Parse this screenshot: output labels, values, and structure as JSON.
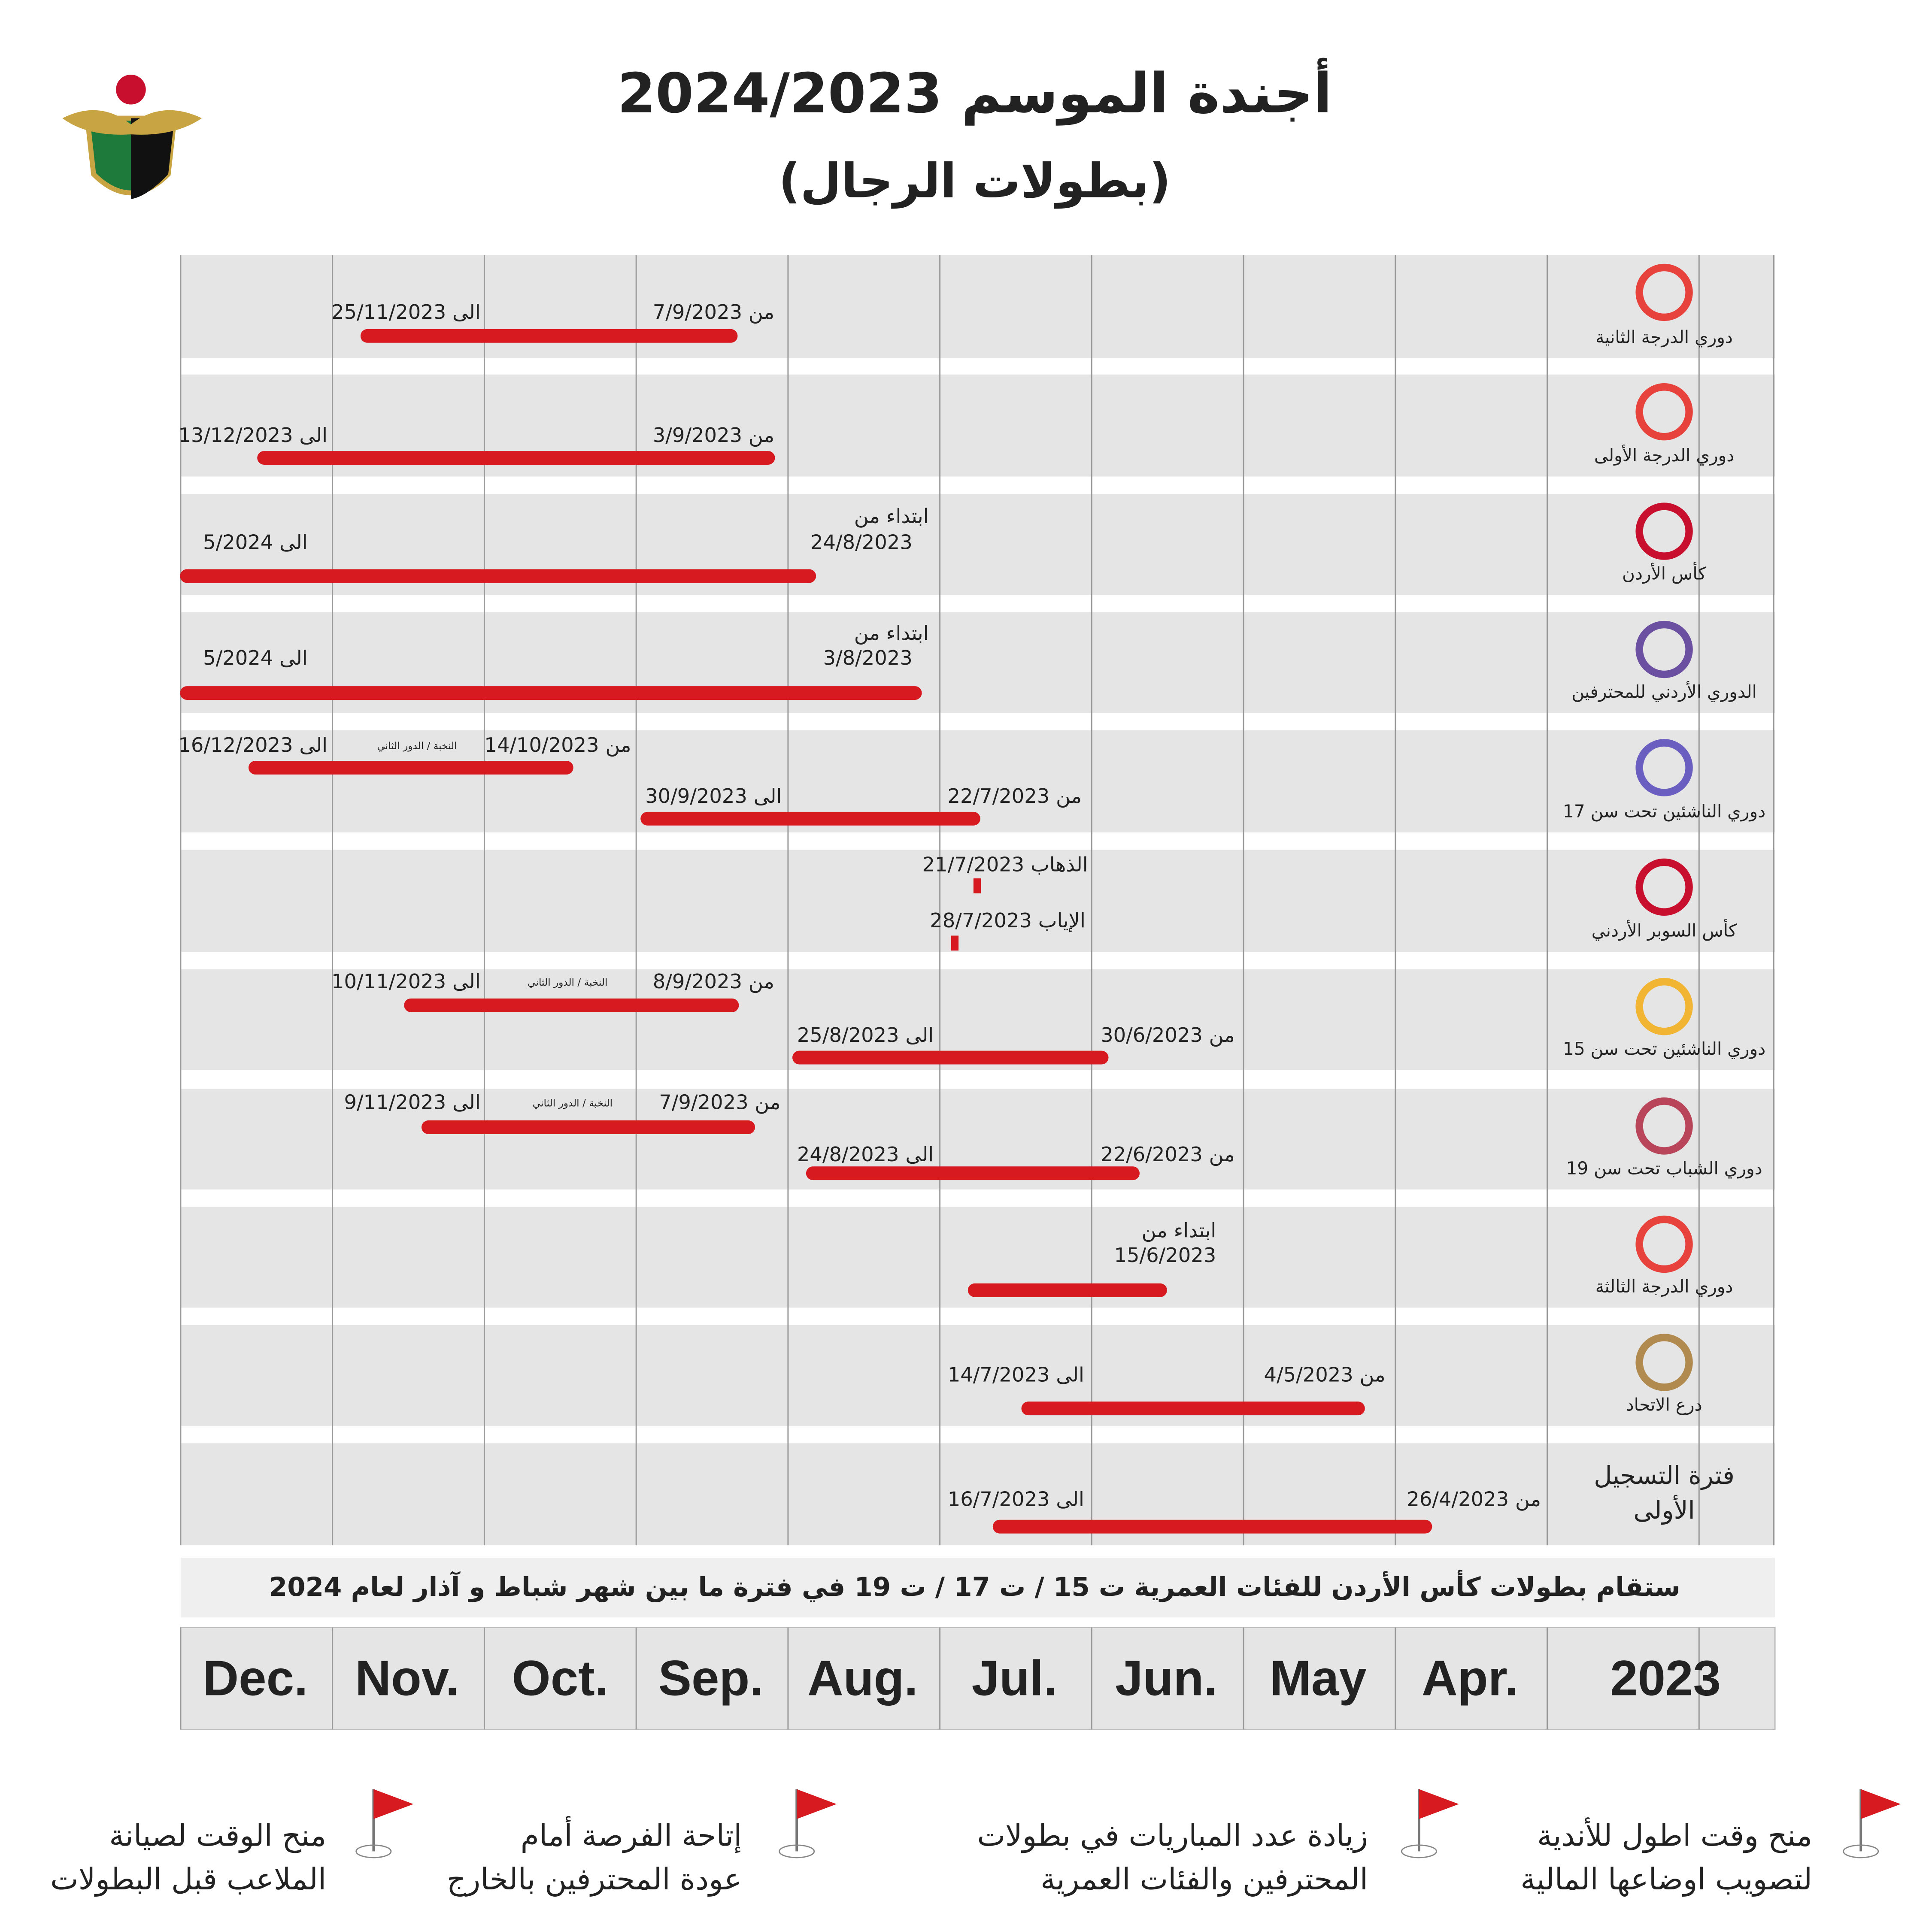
{
  "header": {
    "title": "أجندة الموسم 2024/2023",
    "subtitle": "(بطولات الرجال)"
  },
  "rows": [
    {
      "name": [
        "دوري الدرجة الثانية"
      ],
      "texts": [
        "من 7/9/2023",
        "الى 25/11/2023"
      ]
    },
    {
      "name": [
        "دوري الدرجة الأولى"
      ],
      "texts": [
        "من 3/9/2023",
        "الى 13/12/2023"
      ]
    },
    {
      "name": [
        "كأس الأردن"
      ],
      "texts": [
        "ابتداء من",
        "24/8/2023",
        "الى 5/2024"
      ]
    },
    {
      "name": [
        "الدوري الأردني للمحترفين"
      ],
      "texts": [
        "ابتداء من",
        "3/8/2023",
        "الى 5/2024"
      ]
    },
    {
      "name": [
        "دوري الناشئين تحت سن 17"
      ],
      "texts": [
        "من 14/10/2023",
        "النخبة / الدور الثاني",
        "الى 16/12/2023",
        "من 22/7/2023",
        "الى 30/9/2023"
      ]
    },
    {
      "name": [
        "كأس السوبر الأردني"
      ],
      "texts": [
        "الذهاب 21/7/2023",
        "الإياب 28/7/2023"
      ]
    },
    {
      "name": [
        "دوري الناشئين تحت سن 15"
      ],
      "texts": [
        "من 8/9/2023",
        "النخبة / الدور الثاني",
        "الى 10/11/2023",
        "من 30/6/2023",
        "الى 25/8/2023"
      ]
    },
    {
      "name": [
        "دوري الشباب تحت سن 19"
      ],
      "texts": [
        "من 7/9/2023",
        "النخبة / الدور الثاني",
        "الى 9/11/2023",
        "من 22/6/2023",
        "الى 24/8/2023"
      ]
    },
    {
      "name": [
        "دوري الدرجة الثالثة"
      ],
      "texts": [
        "ابتداء من",
        "15/6/2023"
      ]
    },
    {
      "name": [
        "درع الاتحاد"
      ],
      "texts": [
        "من 4/5/2023",
        "الى 14/7/2023"
      ]
    },
    {
      "name": [
        "فترة التسجيل",
        "الأولى"
      ],
      "texts": [
        "من 26/4/2023",
        "الى 16/7/2023"
      ]
    }
  ],
  "note": "ستقام بطولات كأس الأردن للفئات العمرية ت 15 / ت 17 / ت 19 في فترة ما بين شهر شباط و آذار لعام 2024",
  "months": [
    "Dec.",
    "Nov.",
    "Oct.",
    "Sep.",
    "Aug.",
    "Jul.",
    "Jun.",
    "May",
    "Apr.",
    "2023"
  ],
  "footer": [
    [
      "منح وقت اطول للأندية",
      "لتصويب اوضاعها المالية"
    ],
    [
      "زيادة عدد المباريات في بطولات",
      "المحترفين والفئات العمرية"
    ],
    [
      "إتاحة الفرصة أمام",
      "عودة المحترفين بالخارج"
    ],
    [
      "منح الوقت لصيانة",
      "الملاعب قبل البطولات"
    ]
  ]
}
